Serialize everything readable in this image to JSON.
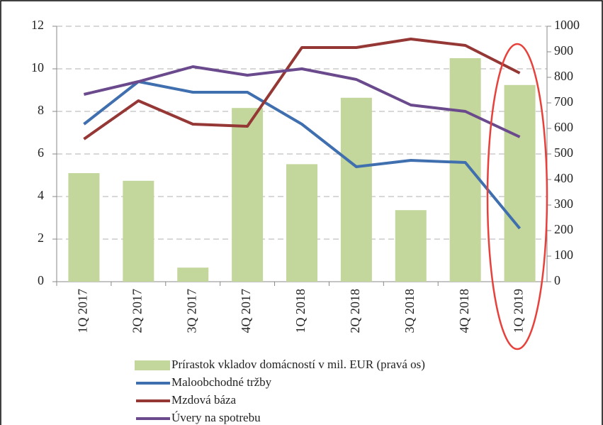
{
  "chart_data": {
    "type": "combo",
    "categories": [
      "1Q 2017",
      "2Q 2017",
      "3Q 2017",
      "4Q 2017",
      "1Q 2018",
      "2Q 2018",
      "3Q 2018",
      "4Q 2018",
      "1Q 2019"
    ],
    "series": [
      {
        "name": "Prírastok vkladov domácností v mil. EUR (pravá os)",
        "type": "bar",
        "axis": "y2",
        "color": "#c3d69b",
        "values": [
          425,
          395,
          55,
          680,
          460,
          720,
          280,
          875,
          770
        ]
      },
      {
        "name": "Maloobchodné tržby",
        "type": "line",
        "color": "#3f6fae",
        "values": [
          7.4,
          9.4,
          8.9,
          8.9,
          7.4,
          5.4,
          5.7,
          5.6,
          2.5
        ]
      },
      {
        "name": "Mzdová báza",
        "type": "line",
        "color": "#953735",
        "values": [
          6.7,
          8.5,
          7.4,
          7.3,
          11.0,
          11.0,
          11.4,
          11.1,
          9.8
        ]
      },
      {
        "name": "Úvery na spotrebu",
        "type": "line",
        "color": "#6a4a8c",
        "values": [
          8.8,
          9.4,
          10.1,
          9.7,
          10.0,
          9.5,
          8.3,
          8.0,
          6.8
        ]
      }
    ],
    "ylim": [
      0,
      12
    ],
    "yticks": [
      0,
      2,
      4,
      6,
      8,
      10,
      12
    ],
    "y2lim": [
      0,
      1000
    ],
    "y2ticks": [
      0,
      100,
      200,
      300,
      400,
      500,
      600,
      700,
      800,
      900,
      1000
    ],
    "grid": true
  }
}
